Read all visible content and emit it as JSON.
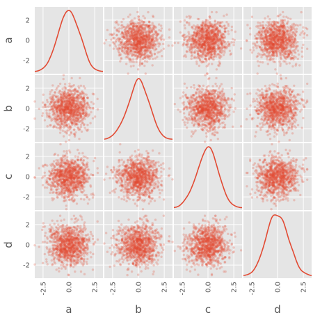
{
  "chart_data": {
    "type": "scatter_matrix",
    "variables": [
      "a",
      "b",
      "c",
      "d"
    ],
    "diagonal": "kde",
    "n_points": 1000,
    "distribution": "standard normal, independent",
    "off_diagonal_range": [
      -3.3,
      3.3
    ],
    "y_tick_labels": [
      "2",
      "0",
      "-2"
    ],
    "x_tick_labels": [
      "-2.5",
      "0.0",
      "2.5"
    ],
    "grid": true,
    "marker_alpha": 0.25,
    "colors": {
      "marker": "#E24A33",
      "line": "#E24A33",
      "panel_background": "#E5E5E5",
      "grid": "#FFFFFF",
      "text": "#555555"
    }
  }
}
